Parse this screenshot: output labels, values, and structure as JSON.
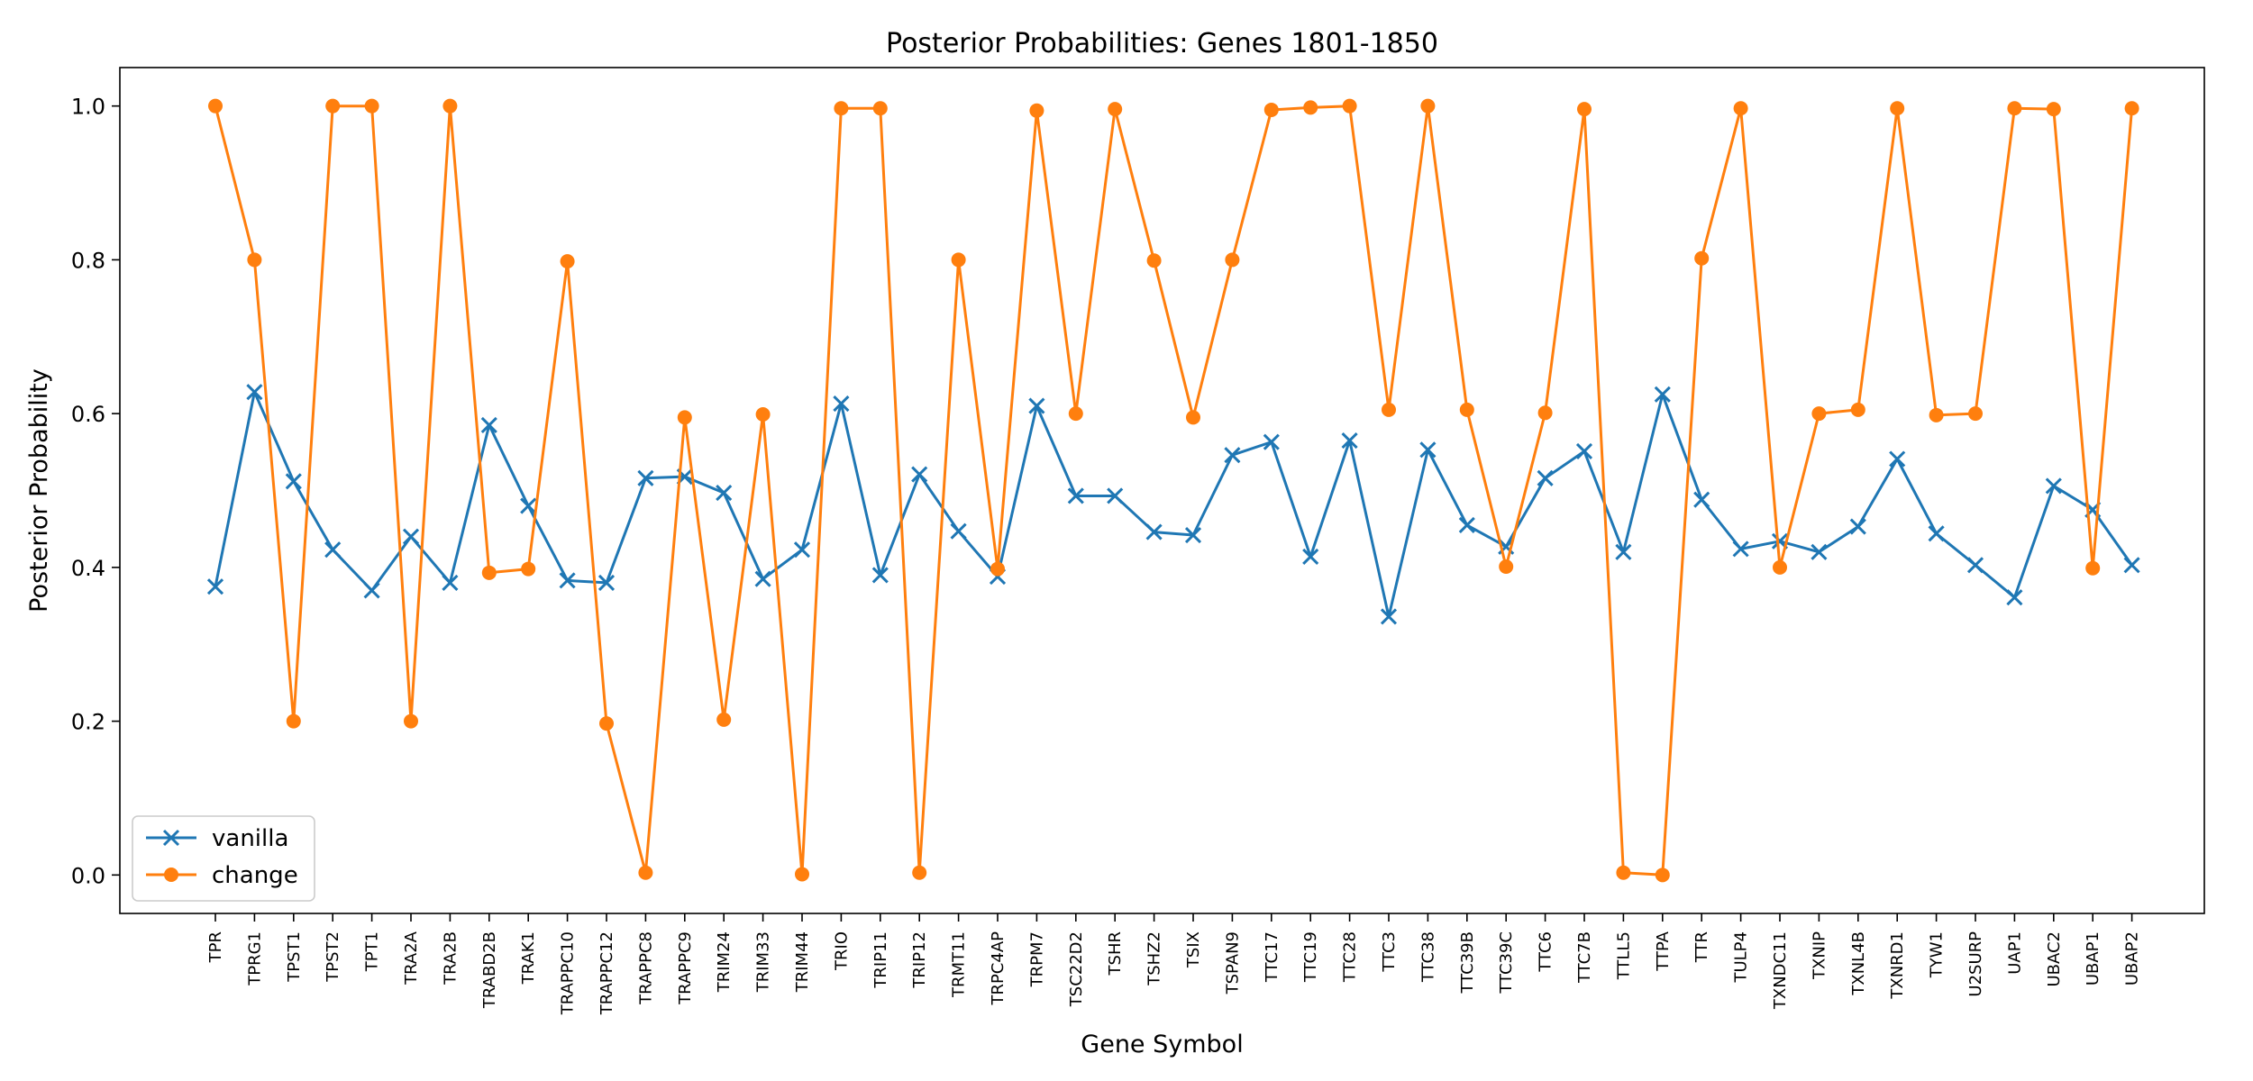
{
  "chart_data": {
    "type": "line",
    "title": "Posterior Probabilities: Genes 1801-1850",
    "xlabel": "Gene Symbol",
    "ylabel": "Posterior Probability",
    "ylim": [
      -0.05,
      1.05
    ],
    "yticks": [
      "0.0",
      "0.2",
      "0.4",
      "0.6",
      "0.8",
      "1.0"
    ],
    "grid": false,
    "legend_position": "lower-left",
    "categories": [
      "TPR",
      "TPRG1",
      "TPST1",
      "TPST2",
      "TPT1",
      "TRA2A",
      "TRA2B",
      "TRABD2B",
      "TRAK1",
      "TRAPPC10",
      "TRAPPC12",
      "TRAPPC8",
      "TRAPPC9",
      "TRIM24",
      "TRIM33",
      "TRIM44",
      "TRIO",
      "TRIP11",
      "TRIP12",
      "TRMT11",
      "TRPC4AP",
      "TRPM7",
      "TSC22D2",
      "TSHR",
      "TSHZ2",
      "TSIX",
      "TSPAN9",
      "TTC17",
      "TTC19",
      "TTC28",
      "TTC3",
      "TTC38",
      "TTC39B",
      "TTC39C",
      "TTC6",
      "TTC7B",
      "TTLL5",
      "TTPA",
      "TTR",
      "TULP4",
      "TXNDC11",
      "TXNIP",
      "TXNL4B",
      "TXNRD1",
      "TYW1",
      "U2SURP",
      "UAP1",
      "UBAC2",
      "UBAP1",
      "UBAP2"
    ],
    "series": [
      {
        "name": "vanilla",
        "color": "#1f77b4",
        "marker": "x",
        "values": [
          0.375,
          0.628,
          0.512,
          0.423,
          0.37,
          0.44,
          0.38,
          0.585,
          0.48,
          0.383,
          0.38,
          0.516,
          0.518,
          0.497,
          0.385,
          0.423,
          0.613,
          0.39,
          0.521,
          0.447,
          0.388,
          0.61,
          0.493,
          0.493,
          0.446,
          0.442,
          0.546,
          0.563,
          0.414,
          0.565,
          0.336,
          0.553,
          0.455,
          0.427,
          0.516,
          0.551,
          0.42,
          0.625,
          0.488,
          0.424,
          0.434,
          0.42,
          0.453,
          0.541,
          0.444,
          0.403,
          0.361,
          0.506,
          0.475,
          0.403
        ]
      },
      {
        "name": "change",
        "color": "#ff7f0e",
        "marker": "o",
        "values": [
          1.0,
          0.8,
          0.2,
          1.0,
          1.0,
          0.2,
          1.0,
          0.393,
          0.398,
          0.798,
          0.197,
          0.003,
          0.595,
          0.202,
          0.599,
          0.001,
          0.997,
          0.997,
          0.003,
          0.8,
          0.398,
          0.994,
          0.6,
          0.996,
          0.799,
          0.595,
          0.8,
          0.995,
          0.998,
          1.0,
          0.605,
          1.0,
          0.605,
          0.401,
          0.601,
          0.996,
          0.003,
          0.0,
          0.802,
          0.997,
          0.4,
          0.6,
          0.605,
          0.997,
          0.598,
          0.6,
          0.997,
          0.996,
          0.399,
          0.997
        ]
      }
    ]
  }
}
